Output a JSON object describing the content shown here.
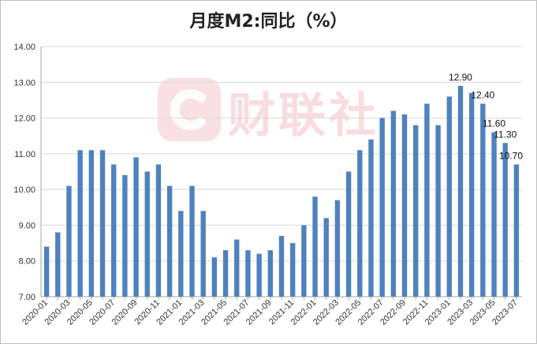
{
  "chart_data": {
    "type": "bar",
    "title": "月度M2:同比（%）",
    "xlabel": "",
    "ylabel": "",
    "ylim": [
      7,
      14
    ],
    "yticks": [
      "7.00",
      "8.00",
      "9.00",
      "10.00",
      "11.00",
      "12.00",
      "13.00",
      "14.00"
    ],
    "grid": true,
    "legend": "none",
    "bar_color": "#4f81bd",
    "categories": [
      "2020-01",
      "2020-02",
      "2020-03",
      "2020-04",
      "2020-05",
      "2020-06",
      "2020-07",
      "2020-08",
      "2020-09",
      "2020-10",
      "2020-11",
      "2020-12",
      "2021-01",
      "2021-02",
      "2021-03",
      "2021-04",
      "2021-05",
      "2021-06",
      "2021-07",
      "2021-08",
      "2021-09",
      "2021-10",
      "2021-11",
      "2021-12",
      "2022-01",
      "2022-02",
      "2022-03",
      "2022-04",
      "2022-05",
      "2022-06",
      "2022-07",
      "2022-08",
      "2022-09",
      "2022-10",
      "2022-11",
      "2022-12",
      "2023-01",
      "2023-02",
      "2023-03",
      "2023-04",
      "2023-05",
      "2023-06",
      "2023-07"
    ],
    "xtick_labels": [
      "2020-01",
      "2020-03",
      "2020-05",
      "2020-07",
      "2020-09",
      "2020-11",
      "2021-01",
      "2021-03",
      "2021-05",
      "2021-07",
      "2021-09",
      "2021-11",
      "2022-01",
      "2022-03",
      "2022-05",
      "2022-07",
      "2022-09",
      "2022-11",
      "2023-01",
      "2023-03",
      "2023-05",
      "2023-07"
    ],
    "values": [
      8.4,
      8.8,
      10.1,
      11.1,
      11.1,
      11.1,
      10.7,
      10.4,
      10.9,
      10.5,
      10.7,
      10.1,
      9.4,
      10.1,
      9.4,
      8.1,
      8.3,
      8.6,
      8.3,
      8.2,
      8.3,
      8.7,
      8.5,
      9.0,
      9.8,
      9.2,
      9.7,
      10.5,
      11.1,
      11.4,
      12.0,
      12.2,
      12.1,
      11.8,
      12.4,
      11.8,
      12.6,
      12.9,
      12.7,
      12.4,
      11.6,
      11.3,
      10.7
    ],
    "data_labels": [
      {
        "category": "2023-02",
        "text": "12.90"
      },
      {
        "category": "2023-04",
        "text": "12.40"
      },
      {
        "category": "2023-05",
        "text": "11.60"
      },
      {
        "category": "2023-06",
        "text": "11.30"
      },
      {
        "category": "2023-07",
        "text": "10.70"
      }
    ]
  },
  "watermark": {
    "text": "财联社"
  }
}
